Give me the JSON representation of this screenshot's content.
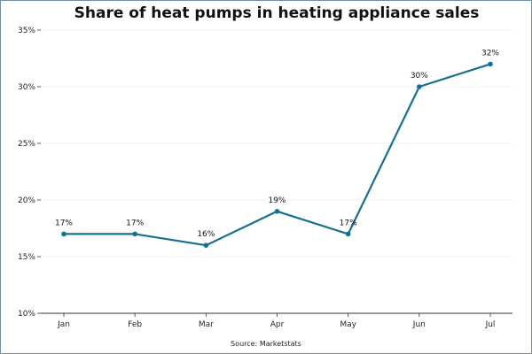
{
  "chart_data": {
    "type": "line",
    "title": "Share of heat pumps in heating appliance sales",
    "xlabel": "",
    "ylabel": "",
    "categories": [
      "Jan",
      "Feb",
      "Mar",
      "Apr",
      "May",
      "Jun",
      "Jul"
    ],
    "series": [
      {
        "values": [
          17,
          17,
          16,
          19,
          17,
          30,
          32
        ]
      }
    ],
    "data_labels": [
      "17%",
      "17%",
      "16%",
      "19%",
      "17%",
      "30%",
      "32%"
    ],
    "ylim": [
      10,
      35
    ],
    "yticks": [
      10,
      15,
      20,
      25,
      30,
      35
    ],
    "ytick_labels": [
      "10%",
      "15%",
      "20%",
      "25%",
      "30%",
      "35%"
    ],
    "grid": true,
    "line_color": "#17708f",
    "source": "Source: Marketstats"
  }
}
